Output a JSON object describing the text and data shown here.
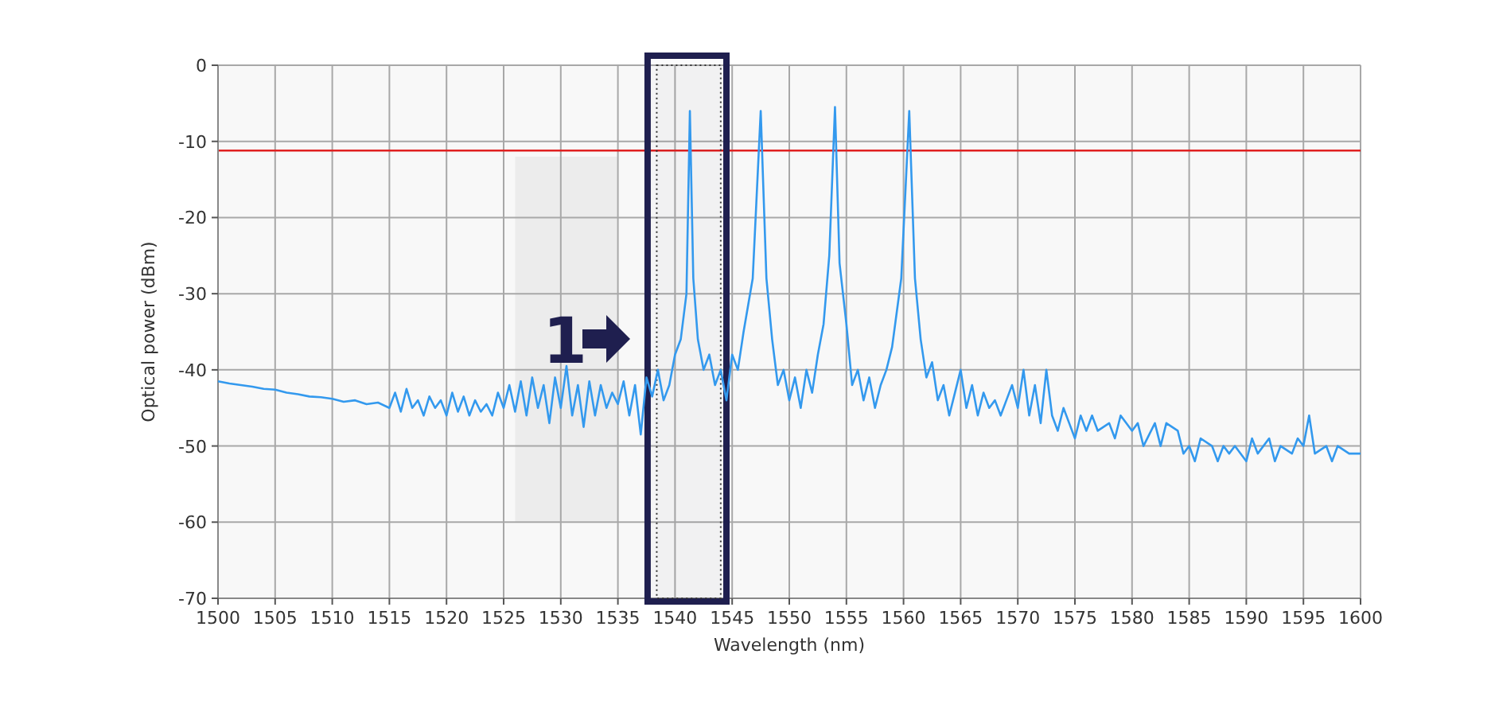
{
  "chart_data": {
    "type": "line",
    "xlabel": "Wavelength (nm)",
    "ylabel": "Optical power (dBm)",
    "annotations": [
      "1"
    ],
    "xlim": [
      1500,
      1600
    ],
    "xticks": [
      1500,
      1505,
      1510,
      1515,
      1520,
      1525,
      1530,
      1535,
      1540,
      1545,
      1550,
      1555,
      1560,
      1565,
      1570,
      1575,
      1580,
      1585,
      1590,
      1595,
      1600
    ],
    "ylim": [
      -70,
      0
    ],
    "yticks": [
      -70,
      -60,
      -50,
      -40,
      -30,
      -20,
      -10,
      0
    ],
    "grid": true,
    "marker": "none",
    "line_style": "solid",
    "ref_lines": [
      {
        "axis": "y",
        "value": -11.2,
        "color": "#e02020"
      }
    ],
    "bands": [
      {
        "axis": "x",
        "from": 1537.6,
        "to": 1544.5,
        "color": "#1f1f4f"
      },
      {
        "axis": "x",
        "from": 1538.4,
        "to": 1544.0,
        "color": "#333333"
      }
    ],
    "series": [
      {
        "color": "#3399ee",
        "x": [
          1500,
          1501,
          1502,
          1503,
          1504,
          1505,
          1506,
          1507,
          1508,
          1509,
          1510,
          1511,
          1512,
          1513,
          1514,
          1515,
          1515.5,
          1516,
          1516.5,
          1517,
          1517.5,
          1518,
          1518.5,
          1519,
          1519.5,
          1520,
          1520.5,
          1521,
          1521.5,
          1522,
          1522.5,
          1523,
          1523.5,
          1524,
          1524.5,
          1525,
          1525.5,
          1526,
          1526.5,
          1527,
          1527.5,
          1528,
          1528.5,
          1529,
          1529.5,
          1530,
          1530.5,
          1531,
          1531.5,
          1532,
          1532.5,
          1533,
          1533.5,
          1534,
          1534.5,
          1535,
          1535.5,
          1536,
          1536.5,
          1537,
          1537.5,
          1538,
          1538.5,
          1539,
          1539.5,
          1540,
          1540.5,
          1541,
          1541.3,
          1541.6,
          1542,
          1542.5,
          1543,
          1543.5,
          1544,
          1544.5,
          1545,
          1545.5,
          1546,
          1546.8,
          1547.5,
          1548,
          1548.5,
          1549,
          1549.5,
          1550,
          1550.5,
          1551,
          1551.5,
          1552,
          1552.5,
          1553,
          1553.5,
          1554,
          1554.4,
          1555,
          1555.5,
          1556,
          1556.5,
          1557,
          1557.5,
          1558,
          1558.5,
          1559,
          1559.8,
          1560.5,
          1561,
          1561.5,
          1562,
          1562.5,
          1563,
          1563.5,
          1564,
          1564.5,
          1565,
          1565.5,
          1566,
          1566.5,
          1567,
          1567.5,
          1568,
          1568.5,
          1569,
          1569.5,
          1570,
          1570.5,
          1571,
          1571.5,
          1572,
          1572.5,
          1573,
          1573.5,
          1574,
          1574.5,
          1575,
          1575.5,
          1576,
          1576.5,
          1577,
          1578,
          1578.5,
          1579,
          1580,
          1580.5,
          1581,
          1582,
          1582.5,
          1583,
          1584,
          1584.5,
          1585,
          1585.5,
          1586,
          1587,
          1587.5,
          1588,
          1588.5,
          1589,
          1590,
          1590.5,
          1591,
          1592,
          1592.5,
          1593,
          1594,
          1594.5,
          1595,
          1595.5,
          1596,
          1597,
          1597.5,
          1598,
          1599,
          1600
        ],
        "values": [
          -41.5,
          -41.8,
          -42,
          -42.2,
          -42.5,
          -42.6,
          -43,
          -43.2,
          -43.5,
          -43.6,
          -43.8,
          -44.2,
          -44,
          -44.5,
          -44.3,
          -45,
          -43,
          -45.5,
          -42.5,
          -45,
          -44,
          -46,
          -43.5,
          -45,
          -44,
          -46,
          -43,
          -45.5,
          -43.5,
          -46,
          -44,
          -45.5,
          -44.5,
          -46,
          -43,
          -45,
          -42,
          -45.5,
          -41.5,
          -46,
          -41,
          -45,
          -42,
          -47,
          -41,
          -45,
          -39.5,
          -46,
          -42,
          -47.5,
          -41.5,
          -46,
          -42,
          -45,
          -43,
          -44.5,
          -41.5,
          -46,
          -42,
          -48.5,
          -41,
          -43.5,
          -40,
          -44,
          -42,
          -38,
          -36,
          -30,
          -6,
          -28,
          -36,
          -40,
          -38,
          -42,
          -40,
          -44,
          -38,
          -40,
          -35,
          -28,
          -6,
          -28,
          -36,
          -42,
          -40,
          -44,
          -41,
          -45,
          -40,
          -43,
          -38,
          -34,
          -25,
          -5.5,
          -26,
          -34,
          -42,
          -40,
          -44,
          -41,
          -45,
          -42,
          -40,
          -37,
          -28,
          -6,
          -28,
          -36,
          -41,
          -39,
          -44,
          -42,
          -46,
          -43,
          -40,
          -45,
          -42,
          -46,
          -43,
          -45,
          -44,
          -46,
          -44,
          -42,
          -45,
          -40,
          -46,
          -42,
          -47,
          -40,
          -46,
          -48,
          -45,
          -47,
          -49,
          -46,
          -48,
          -46,
          -48,
          -47,
          -49,
          -46,
          -48,
          -47,
          -50,
          -47,
          -50,
          -47,
          -48,
          -51,
          -50,
          -52,
          -49,
          -50,
          -52,
          -50,
          -51,
          -50,
          -52,
          -49,
          -51,
          -49,
          -52,
          -50,
          -51,
          -49,
          -50,
          -46,
          -51,
          -50,
          -52,
          -50,
          -51,
          -51
        ]
      }
    ]
  }
}
